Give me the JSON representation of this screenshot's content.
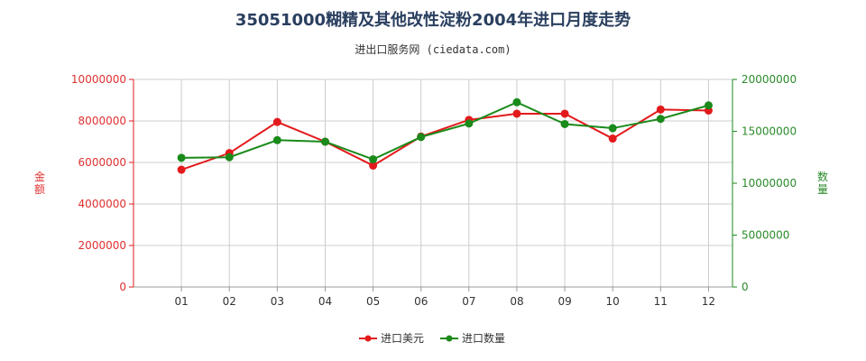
{
  "title": "35051000糊精及其他改性淀粉2004年进口月度走势",
  "subtitle": "进出口服务网 (ciedata.com)",
  "colors": {
    "amount": "#e31a1c",
    "quantity": "#1a8a1a",
    "grid": "#cccccc"
  },
  "chart_data": {
    "type": "line",
    "categories": [
      "01",
      "02",
      "03",
      "04",
      "05",
      "06",
      "07",
      "08",
      "09",
      "10",
      "11",
      "12"
    ],
    "ylabel_left": "金额",
    "ylabel_right": "数量",
    "ylim_left": [
      0,
      10000000
    ],
    "ylim_right": [
      0,
      20000000
    ],
    "yticks_left": [
      "0",
      "2000000",
      "4000000",
      "6000000",
      "8000000",
      "10000000"
    ],
    "yticks_right": [
      "0",
      "5000000",
      "10000000",
      "15000000",
      "20000000"
    ],
    "grid": true,
    "legend_position": "bottom",
    "series": [
      {
        "name": "进口美元",
        "axis": "left",
        "values": [
          5650000,
          6450000,
          7950000,
          7000000,
          5850000,
          7250000,
          8050000,
          8350000,
          8350000,
          7150000,
          8550000,
          8500000
        ]
      },
      {
        "name": "进口数量",
        "axis": "right",
        "values": [
          12450000,
          12500000,
          14150000,
          14000000,
          12300000,
          14450000,
          15750000,
          17800000,
          15700000,
          15300000,
          16200000,
          17500000
        ]
      }
    ]
  }
}
